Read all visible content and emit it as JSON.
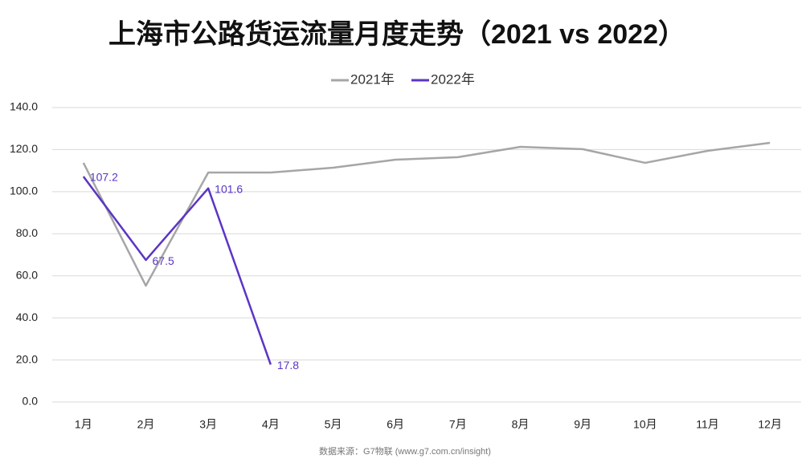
{
  "chart_data": {
    "type": "line",
    "title": "上海市公路货运流量月度走势（2021 vs 2022）",
    "source": "数据来源：G7物联 (www.g7.com.cn/insight)",
    "categories": [
      "1月",
      "2月",
      "3月",
      "4月",
      "5月",
      "6月",
      "7月",
      "8月",
      "9月",
      "10月",
      "11月",
      "12月"
    ],
    "series": [
      {
        "name": "2021年",
        "color": "#a6a6a6",
        "values": [
          113.7,
          55.3,
          109.1,
          109.1,
          111.4,
          115.2,
          116.4,
          121.3,
          120.2,
          113.7,
          119.4,
          123.2
        ]
      },
      {
        "name": "2022年",
        "color": "#5b35c4",
        "labels": true,
        "values": [
          107.2,
          67.5,
          101.6,
          17.8,
          null,
          null,
          null,
          null,
          null,
          null,
          null,
          null
        ]
      }
    ],
    "ylim": [
      0,
      140
    ],
    "yticks": [
      {
        "value": 0,
        "label": "0.0"
      },
      {
        "value": 20,
        "label": "20.0"
      },
      {
        "value": 40,
        "label": "40.0"
      },
      {
        "value": 60,
        "label": "60.0"
      },
      {
        "value": 80,
        "label": "80.0"
      },
      {
        "value": 100,
        "label": "100.0"
      },
      {
        "value": 120,
        "label": "120.0"
      },
      {
        "value": 140,
        "label": "140.0"
      }
    ],
    "grid": true,
    "legend": "top"
  }
}
